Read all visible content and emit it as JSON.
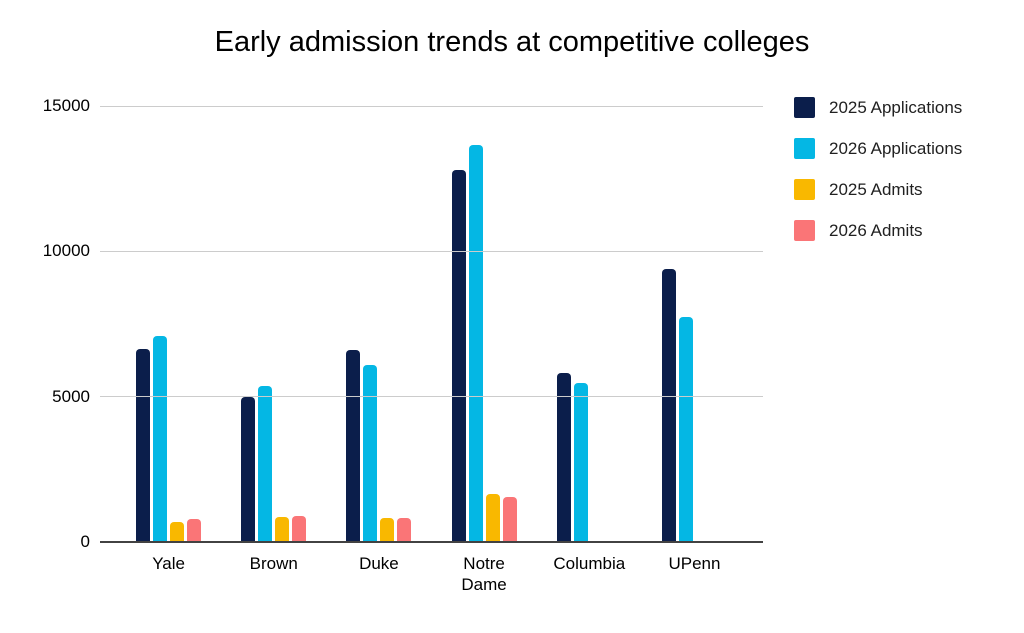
{
  "chart_data": {
    "type": "bar",
    "title": "Early admission trends at competitive colleges",
    "categories": [
      "Yale",
      "Brown",
      "Duke",
      "Notre Dame",
      "Columbia",
      "UPenn"
    ],
    "series": [
      {
        "name": "2025 Applications",
        "color": "#0b1e4b",
        "values": [
          6650,
          5000,
          6600,
          12800,
          5800,
          9400
        ]
      },
      {
        "name": "2026 Applications",
        "color": "#04b7e4",
        "values": [
          7100,
          5350,
          6100,
          13650,
          5470,
          7750
        ]
      },
      {
        "name": "2025 Admits",
        "color": "#f9b800",
        "values": [
          680,
          870,
          815,
          1640,
          null,
          null
        ]
      },
      {
        "name": "2026 Admits",
        "color": "#fa7577",
        "values": [
          780,
          880,
          815,
          1560,
          null,
          null
        ]
      }
    ],
    "y_ticks": [
      0,
      5000,
      10000,
      15000
    ],
    "ylim": [
      0,
      15000
    ],
    "grid": true,
    "legend_position": "right"
  },
  "style_colors": {
    "background": "#ffffff",
    "gridline": "#cccccc",
    "axis_line": "#424242",
    "text": "#000000"
  }
}
